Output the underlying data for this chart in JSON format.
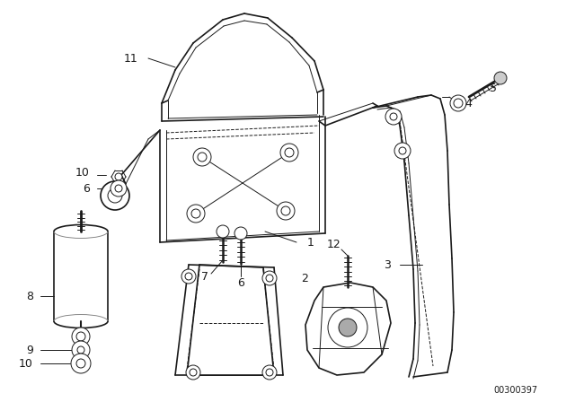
{
  "bg_color": "#ffffff",
  "line_color": "#1a1a1a",
  "figsize": [
    6.4,
    4.48
  ],
  "dpi": 100,
  "diagram_id": "00300397"
}
